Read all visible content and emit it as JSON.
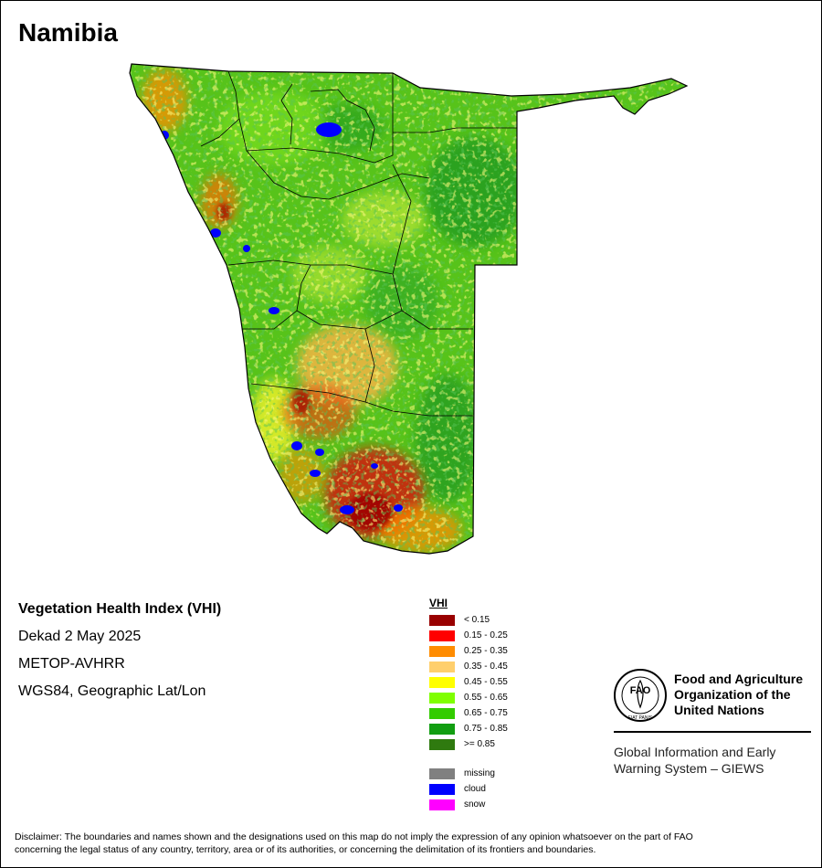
{
  "map": {
    "title": "Namibia",
    "colors": {
      "background_green": "#57c31a",
      "light_green": "#7ee21c",
      "dark_green": "#1f9a1f",
      "yellow": "#f2f22c",
      "light_orange": "#ffcf6c",
      "orange": "#ff8c00",
      "red": "#ff0000",
      "dark_red": "#a00000",
      "cloud_blue": "#0000ff",
      "boundary": "#000000"
    }
  },
  "meta": {
    "index_name": "Vegetation Health Index (VHI)",
    "period": "Dekad 2 May 2025",
    "sensor": "METOP-AVHRR",
    "projection": "WGS84, Geographic Lat/Lon"
  },
  "legend": {
    "title": "VHI",
    "classes": [
      {
        "label": "< 0.15",
        "color": "#990000"
      },
      {
        "label": "0.15 - 0.25",
        "color": "#ff0000"
      },
      {
        "label": "0.25 - 0.35",
        "color": "#ff8c00"
      },
      {
        "label": "0.35 - 0.45",
        "color": "#ffcf6c"
      },
      {
        "label": "0.45 - 0.55",
        "color": "#ffff00"
      },
      {
        "label": "0.55 - 0.65",
        "color": "#7fff00"
      },
      {
        "label": "0.65 - 0.75",
        "color": "#33cc00"
      },
      {
        "label": "0.75 - 0.85",
        "color": "#129e12"
      },
      {
        "label": ">= 0.85",
        "color": "#2f7a0f"
      }
    ],
    "special": [
      {
        "label": "missing",
        "color": "#808080"
      },
      {
        "label": "cloud",
        "color": "#0000ff"
      },
      {
        "label": "snow",
        "color": "#ff00ff"
      }
    ]
  },
  "fao": {
    "logo_text": "FAO",
    "logo_motto": "FIAT PANIS",
    "org_line1": "Food and Agriculture",
    "org_line2": "Organization of the",
    "org_line3": "United Nations",
    "giews_line1": "Global Information and Early",
    "giews_line2": "Warning System – GIEWS"
  },
  "disclaimer": {
    "line1": "Disclaimer: The boundaries and names shown and the designations used on this map do not imply the expression of any opinion whatsoever on the part of FAO",
    "line2": "concerning the legal status of any country, territory, area or of its authorities, or concerning the delimitation of its frontiers and boundaries."
  }
}
